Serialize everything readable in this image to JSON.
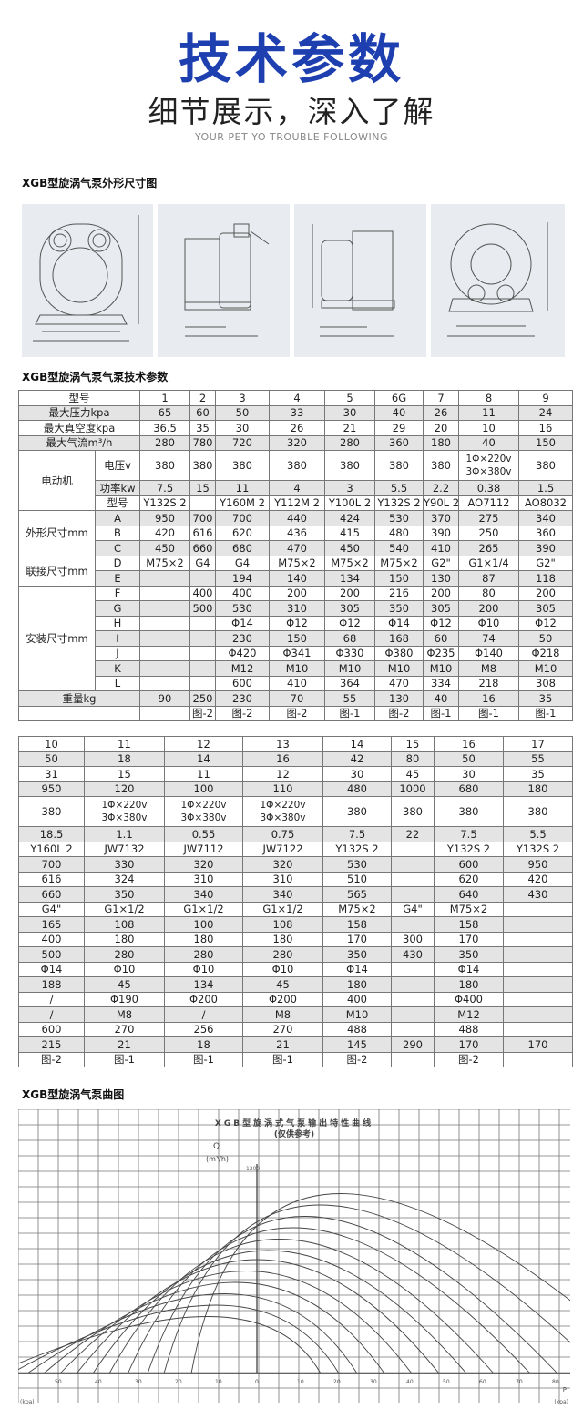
{
  "header": {
    "title": "技术参数",
    "subtitle": "细节展示，深入了解",
    "tagline": "YOUR PET YO TROUBLE FOLLOWING",
    "accent": "#1d3fb0"
  },
  "sections": {
    "drawings_title": "XGB型旋涡气泵外形尺寸图",
    "params_title": "XGB型旋涡气泵气泵技术参数",
    "curve_title": "XGB型旋涡气泵曲图"
  },
  "table1": {
    "rows": [
      {
        "label": "型号",
        "values": [
          "1",
          "2",
          "3",
          "4",
          "5",
          "6G",
          "7",
          "8",
          "9"
        ]
      },
      {
        "label": "最大压力kpa",
        "values": [
          "65",
          "60",
          "50",
          "33",
          "30",
          "40",
          "26",
          "11",
          "24"
        ]
      },
      {
        "label": "最大真空度kpa",
        "values": [
          "36.5",
          "35",
          "30",
          "26",
          "21",
          "29",
          "20",
          "10",
          "16"
        ]
      },
      {
        "label": "最大气流m³/h",
        "values": [
          "280",
          "780",
          "720",
          "320",
          "280",
          "360",
          "180",
          "40",
          "150"
        ]
      },
      {
        "group": "电动机",
        "span": 3,
        "sub": "电压v",
        "tall": true,
        "values": [
          "380",
          "380",
          "380",
          "380",
          "380",
          "380",
          "380",
          "1Φ×220v\n3Φ×380v",
          "380"
        ]
      },
      {
        "sub": "功率kw",
        "values": [
          "7.5",
          "15",
          "11",
          "4",
          "3",
          "5.5",
          "2.2",
          "0.38",
          "1.5"
        ]
      },
      {
        "sub": "型号",
        "values": [
          "Y132S 2",
          "",
          "Y160M 2",
          "Y112M 2",
          "Y100L 2",
          "Y132S 2",
          "Y90L 2",
          "AO7112",
          "AO8032"
        ]
      },
      {
        "group": "外形尺寸mm",
        "span": 3,
        "sub": "A",
        "values": [
          "950",
          "700",
          "700",
          "440",
          "424",
          "530",
          "370",
          "275",
          "340"
        ]
      },
      {
        "sub": "B",
        "values": [
          "420",
          "616",
          "620",
          "436",
          "415",
          "480",
          "390",
          "250",
          "360"
        ]
      },
      {
        "sub": "C",
        "values": [
          "450",
          "660",
          "680",
          "470",
          "450",
          "540",
          "410",
          "265",
          "390"
        ]
      },
      {
        "group": "联接尺寸mm",
        "span": 2,
        "sub": "D",
        "values": [
          "M75×2",
          "G4",
          "G4",
          "M75×2",
          "M75×2",
          "M75×2",
          "G2\"",
          "G1×1/4",
          "G2\""
        ]
      },
      {
        "sub": "E",
        "values": [
          "",
          "",
          "194",
          "140",
          "134",
          "150",
          "130",
          "87",
          "118"
        ]
      },
      {
        "group": "安装尺寸mm",
        "span": 7,
        "sub": "F",
        "values": [
          "",
          "400",
          "400",
          "200",
          "200",
          "216",
          "200",
          "80",
          "200"
        ]
      },
      {
        "sub": "G",
        "values": [
          "",
          "500",
          "530",
          "310",
          "305",
          "350",
          "305",
          "200",
          "305"
        ]
      },
      {
        "sub": "H",
        "values": [
          "",
          "",
          "Φ14",
          "Φ12",
          "Φ12",
          "Φ14",
          "Φ12",
          "Φ10",
          "Φ12"
        ]
      },
      {
        "sub": "I",
        "values": [
          "",
          "",
          "230",
          "150",
          "68",
          "168",
          "60",
          "74",
          "50"
        ]
      },
      {
        "sub": "J",
        "values": [
          "",
          "",
          "Φ420",
          "Φ341",
          "Φ330",
          "Φ380",
          "Φ235",
          "Φ140",
          "Φ218"
        ]
      },
      {
        "sub": "K",
        "values": [
          "",
          "",
          "M12",
          "M10",
          "M10",
          "M10",
          "M10",
          "M8",
          "M10"
        ]
      },
      {
        "sub": "L",
        "values": [
          "",
          "",
          "600",
          "410",
          "364",
          "470",
          "334",
          "218",
          "308"
        ]
      },
      {
        "label": "重量kg",
        "values": [
          "90",
          "250",
          "230",
          "70",
          "55",
          "130",
          "40",
          "16",
          "35"
        ]
      },
      {
        "label": "",
        "values": [
          "",
          "图-2",
          "图-2",
          "图-2",
          "图-1",
          "图-2",
          "图-1",
          "图-1",
          "图-1"
        ]
      }
    ]
  },
  "table2": {
    "rows": [
      [
        "10",
        "11",
        "12",
        "13",
        "14",
        "15",
        "16",
        "17"
      ],
      [
        "50",
        "18",
        "14",
        "16",
        "42",
        "80",
        "50",
        "55"
      ],
      [
        "31",
        "15",
        "11",
        "12",
        "30",
        "45",
        "30",
        "35"
      ],
      [
        "950",
        "120",
        "100",
        "110",
        "480",
        "1000",
        "680",
        "180"
      ],
      [
        "380",
        "1Φ×220v\n3Φ×380v",
        "1Φ×220v\n3Φ×380v",
        "1Φ×220v\n3Φ×380v",
        "380",
        "380",
        "380",
        "380"
      ],
      [
        "18.5",
        "1.1",
        "0.55",
        "0.75",
        "7.5",
        "22",
        "7.5",
        "5.5"
      ],
      [
        "Y160L 2",
        "JW7132",
        "JW7112",
        "JW7122",
        "Y132S 2",
        "",
        "Y132S 2",
        "Y132S 2"
      ],
      [
        "700",
        "330",
        "320",
        "320",
        "530",
        "",
        "600",
        "950"
      ],
      [
        "616",
        "324",
        "310",
        "310",
        "510",
        "",
        "620",
        "420"
      ],
      [
        "660",
        "350",
        "340",
        "340",
        "565",
        "",
        "640",
        "430"
      ],
      [
        "G4\"",
        "G1×1/2",
        "G1×1/2",
        "G1×1/2",
        "M75×2",
        "G4\"",
        "M75×2",
        ""
      ],
      [
        "165",
        "108",
        "100",
        "108",
        "158",
        "",
        "158",
        ""
      ],
      [
        "400",
        "180",
        "180",
        "180",
        "170",
        "300",
        "170",
        ""
      ],
      [
        "500",
        "280",
        "280",
        "280",
        "350",
        "430",
        "350",
        ""
      ],
      [
        "Φ14",
        "Φ10",
        "Φ10",
        "Φ10",
        "Φ14",
        "",
        "Φ14",
        ""
      ],
      [
        "188",
        "45",
        "134",
        "45",
        "180",
        "",
        "180",
        ""
      ],
      [
        "/",
        "Φ190",
        "Φ200",
        "Φ200",
        "400",
        "",
        "Φ400",
        ""
      ],
      [
        "/",
        "M8",
        "/",
        "M8",
        "M10",
        "",
        "M12",
        ""
      ],
      [
        "600",
        "270",
        "256",
        "270",
        "488",
        "",
        "488",
        ""
      ],
      [
        "215",
        "21",
        "18",
        "21",
        "145",
        "290",
        "170",
        "170"
      ],
      [
        "图-2",
        "图-1",
        "图-1",
        "图-1",
        "图-2",
        "",
        "图-2",
        ""
      ]
    ]
  },
  "curve": {
    "title": "XGB型旋涡式气泵输出特性曲线",
    "note": "(仅供参考)",
    "y_label": "Q",
    "y_unit": "(m³/h)",
    "y_top_tick": "1200",
    "x_ticks_left": [
      "50",
      "40",
      "30",
      "20",
      "10",
      "0"
    ],
    "x_ticks_right": [
      "10",
      "20",
      "30",
      "40",
      "50",
      "60",
      "70",
      "80"
    ],
    "x_label": "P",
    "x_unit_left": "(kpa)",
    "x_unit_right": "(kpa)"
  }
}
